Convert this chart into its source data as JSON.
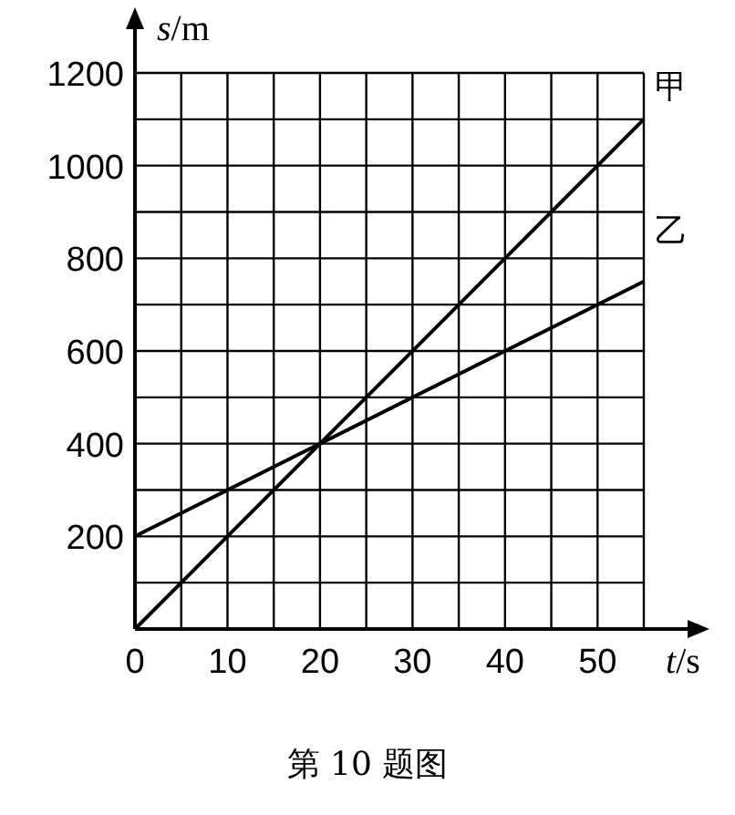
{
  "chart_data": {
    "type": "line",
    "xlabel": "t/s",
    "ylabel": "s/m",
    "x": [
      0,
      55
    ],
    "series": [
      {
        "name": "甲",
        "color": "#000000",
        "values": [
          0,
          1100
        ]
      },
      {
        "name": "乙",
        "color": "#000000",
        "values": [
          200,
          750
        ]
      }
    ],
    "xlim": [
      0,
      55
    ],
    "ylim": [
      0,
      1200
    ],
    "xticks": [
      0,
      {
        "value": 5,
        "label": null
      },
      10,
      {
        "value": 15,
        "label": null
      },
      20,
      {
        "value": 25,
        "label": null
      },
      30,
      {
        "value": 35,
        "label": null
      },
      40,
      {
        "value": 45,
        "label": null
      },
      50,
      {
        "value": 55,
        "label": null
      }
    ],
    "yticks": [
      {
        "value": 0,
        "label": null
      },
      {
        "value": 100,
        "label": null
      },
      200,
      {
        "value": 300,
        "label": null
      },
      400,
      {
        "value": 500,
        "label": null
      },
      600,
      {
        "value": 700,
        "label": null
      },
      800,
      {
        "value": 900,
        "label": null
      },
      1000,
      {
        "value": 1100,
        "label": null
      },
      1200
    ],
    "grid": true,
    "marker": "none",
    "line_style": "solid",
    "annotations": [
      "第 10 题图"
    ]
  }
}
